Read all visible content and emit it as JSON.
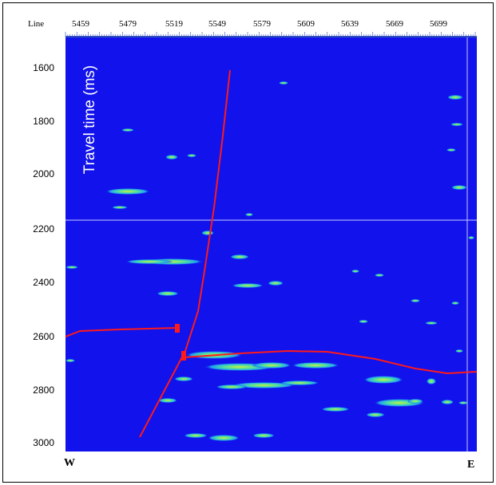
{
  "header": {
    "label": "Line"
  },
  "x_axis": {
    "ticks": [
      "5459",
      "5479",
      "5519",
      "5549",
      "5579",
      "5609",
      "5639",
      "5669",
      "5699"
    ]
  },
  "y_axis": {
    "title": "Travel time (ms)",
    "ticks": [
      "1600",
      "1800",
      "2000",
      "2200",
      "2400",
      "2600",
      "2800",
      "3000"
    ]
  },
  "corners": {
    "left": "W",
    "right": "E"
  }
}
